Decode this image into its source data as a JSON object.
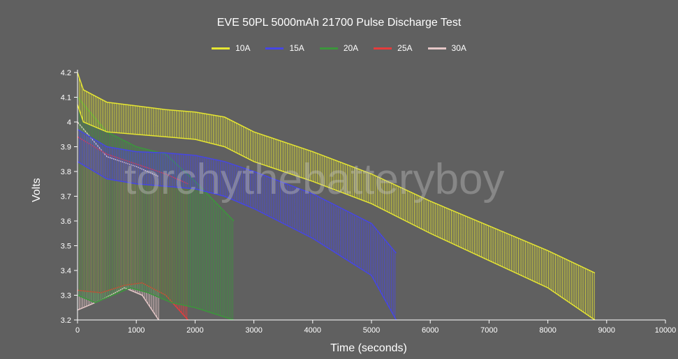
{
  "chart_data": {
    "type": "line",
    "title": "EVE 50PL 5000mAh 21700 Pulse Discharge Test",
    "xlabel": "Time (seconds)",
    "ylabel": "Volts",
    "xlim": [
      0,
      10000
    ],
    "ylim": [
      3.2,
      4.2
    ],
    "x_ticks": [
      "0",
      "1000",
      "2000",
      "3000",
      "4000",
      "5000",
      "6000",
      "7000",
      "8000",
      "9000",
      "10000"
    ],
    "y_ticks": [
      "3.2",
      "3.3",
      "3.4",
      "3.5",
      "3.6",
      "3.7",
      "3.8",
      "3.9",
      "4",
      "4.1",
      "4.2"
    ],
    "legend_position": "top",
    "grid": false,
    "watermark": "torchythebatteryboy",
    "series": [
      {
        "name": "10A",
        "color": "#e6e632",
        "pulse_interval_s": 30,
        "rest_voltage": [
          [
            0,
            4.2
          ],
          [
            100,
            4.13
          ],
          [
            500,
            4.08
          ],
          [
            1000,
            4.065
          ],
          [
            1500,
            4.05
          ],
          [
            2000,
            4.04
          ],
          [
            2500,
            4.02
          ],
          [
            3000,
            3.96
          ],
          [
            4000,
            3.88
          ],
          [
            5000,
            3.79
          ],
          [
            6000,
            3.68
          ],
          [
            7000,
            3.58
          ],
          [
            8000,
            3.48
          ],
          [
            8800,
            3.39
          ]
        ],
        "load_voltage": [
          [
            0,
            4.07
          ],
          [
            100,
            4.0
          ],
          [
            500,
            3.96
          ],
          [
            1000,
            3.95
          ],
          [
            1500,
            3.94
          ],
          [
            2000,
            3.93
          ],
          [
            2500,
            3.9
          ],
          [
            3000,
            3.84
          ],
          [
            4000,
            3.76
          ],
          [
            5000,
            3.67
          ],
          [
            6000,
            3.55
          ],
          [
            7000,
            3.44
          ],
          [
            8000,
            3.33
          ],
          [
            8800,
            3.2
          ]
        ]
      },
      {
        "name": "15A",
        "color": "#4646e6",
        "pulse_interval_s": 30,
        "rest_voltage": [
          [
            0,
            3.97
          ],
          [
            500,
            3.9
          ],
          [
            1000,
            3.88
          ],
          [
            1500,
            3.875
          ],
          [
            2000,
            3.865
          ],
          [
            2500,
            3.84
          ],
          [
            3000,
            3.8
          ],
          [
            4000,
            3.71
          ],
          [
            5000,
            3.59
          ],
          [
            5420,
            3.47
          ]
        ],
        "load_voltage": [
          [
            0,
            3.84
          ],
          [
            500,
            3.77
          ],
          [
            1000,
            3.75
          ],
          [
            1500,
            3.74
          ],
          [
            2000,
            3.73
          ],
          [
            2500,
            3.7
          ],
          [
            3000,
            3.65
          ],
          [
            4000,
            3.53
          ],
          [
            5000,
            3.38
          ],
          [
            5420,
            3.2
          ]
        ]
      },
      {
        "name": "20A",
        "color": "#3c963c",
        "pulse_interval_s": 30,
        "rest_voltage": [
          [
            0,
            4.1
          ],
          [
            500,
            3.96
          ],
          [
            1000,
            3.9
          ],
          [
            1500,
            3.87
          ],
          [
            2000,
            3.76
          ],
          [
            2660,
            3.6
          ]
        ],
        "load_voltage": [
          [
            0,
            3.3
          ],
          [
            300,
            3.27
          ],
          [
            600,
            3.3
          ],
          [
            900,
            3.33
          ],
          [
            1200,
            3.31
          ],
          [
            1600,
            3.27
          ],
          [
            2000,
            3.25
          ],
          [
            2660,
            3.2
          ]
        ]
      },
      {
        "name": "25A",
        "color": "#e63c3c",
        "pulse_interval_s": 30,
        "rest_voltage": [
          [
            0,
            3.94
          ],
          [
            500,
            3.87
          ],
          [
            1000,
            3.83
          ],
          [
            1500,
            3.79
          ],
          [
            1880,
            3.75
          ]
        ],
        "load_voltage": [
          [
            0,
            3.32
          ],
          [
            400,
            3.31
          ],
          [
            800,
            3.34
          ],
          [
            1100,
            3.35
          ],
          [
            1500,
            3.3
          ],
          [
            1880,
            3.2
          ]
        ]
      },
      {
        "name": "30A",
        "color": "#e6c8c8",
        "pulse_interval_s": 30,
        "rest_voltage": [
          [
            0,
            4.0
          ],
          [
            500,
            3.86
          ],
          [
            1000,
            3.82
          ],
          [
            1380,
            3.78
          ]
        ],
        "load_voltage": [
          [
            0,
            3.24
          ],
          [
            400,
            3.28
          ],
          [
            800,
            3.33
          ],
          [
            1100,
            3.3
          ],
          [
            1380,
            3.2
          ]
        ]
      }
    ]
  }
}
